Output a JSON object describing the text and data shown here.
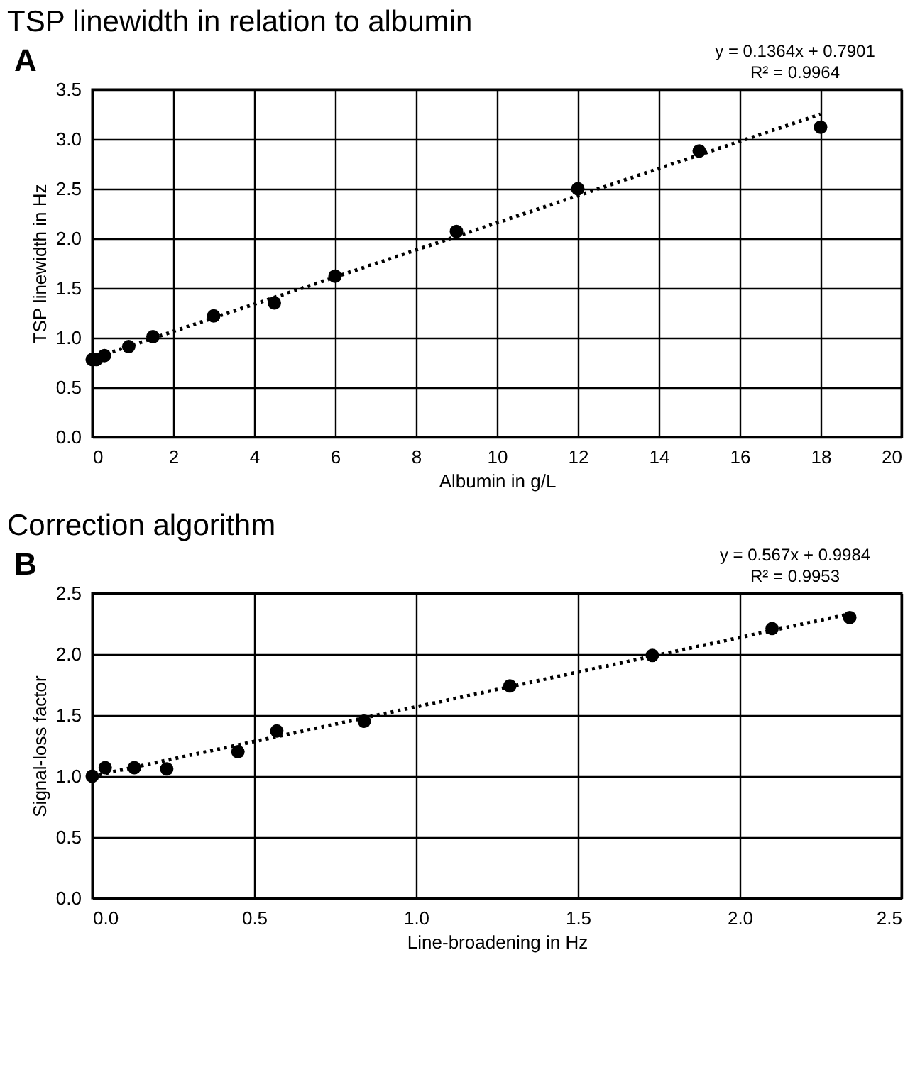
{
  "chart_data": [
    {
      "type": "scatter",
      "title": "TSP linewidth in relation to albumin",
      "xlabel": "Albumin in g/L",
      "ylabel": "TSP linewidth in Hz",
      "annotations": [
        "A",
        "y = 0.1364x + 0.7901",
        "R² = 0.9964"
      ],
      "series": [
        {
          "color": "#000000",
          "marker": "circle",
          "x": [
            0,
            0.1,
            0.3,
            0.9,
            1.5,
            3,
            4.5,
            6,
            9,
            12,
            15,
            18
          ],
          "values": [
            0.78,
            0.78,
            0.82,
            0.91,
            1.01,
            1.22,
            1.35,
            1.62,
            2.07,
            2.5,
            2.88,
            3.12
          ]
        },
        {
          "type": "line",
          "color": "#000000",
          "marker": "none",
          "line_style": "dotted",
          "x": [
            0,
            18
          ],
          "values": [
            0.79,
            3.25
          ]
        }
      ],
      "xlim": [
        0,
        20
      ],
      "xticks": [
        0,
        2,
        4,
        6,
        8,
        10,
        12,
        14,
        16,
        18,
        20
      ],
      "ylim": [
        0,
        3.5
      ],
      "yticks": [
        {
          "value": 0,
          "label": "0.0"
        },
        {
          "value": 0.5,
          "label": "0.5"
        },
        {
          "value": 1,
          "label": "1.0"
        },
        {
          "value": 1.5,
          "label": "1.5"
        },
        {
          "value": 2,
          "label": "2.0"
        },
        {
          "value": 2.5,
          "label": "2.5"
        },
        {
          "value": 3,
          "label": "3.0"
        },
        {
          "value": 3.5,
          "label": "3.5"
        }
      ],
      "grid": true,
      "legend": false
    },
    {
      "type": "scatter",
      "title": "Correction algorithm",
      "xlabel": "Line-broadening in Hz",
      "ylabel": "Signal-loss factor",
      "annotations": [
        "B",
        "y = 0.567x + 0.9984",
        "R² = 0.9953"
      ],
      "series": [
        {
          "color": "#000000",
          "marker": "circle",
          "x": [
            0,
            0.04,
            0.13,
            0.23,
            0.45,
            0.57,
            0.84,
            1.29,
            1.73,
            2.1,
            2.34
          ],
          "values": [
            1.0,
            1.07,
            1.07,
            1.06,
            1.2,
            1.37,
            1.45,
            1.74,
            1.99,
            2.21,
            2.3
          ]
        },
        {
          "type": "line",
          "color": "#000000",
          "marker": "none",
          "line_style": "dotted",
          "x": [
            0,
            2.34
          ],
          "values": [
            1.0,
            2.33
          ]
        }
      ],
      "xlim": [
        0,
        2.5
      ],
      "xticks": [
        {
          "value": 0,
          "label": "0.0"
        },
        {
          "value": 0.5,
          "label": "0.5"
        },
        {
          "value": 1,
          "label": "1.0"
        },
        {
          "value": 1.5,
          "label": "1.5"
        },
        {
          "value": 2,
          "label": "2.0"
        },
        {
          "value": 2.5,
          "label": "2.5"
        }
      ],
      "ylim": [
        0,
        2.5
      ],
      "yticks": [
        {
          "value": 0,
          "label": "0.0"
        },
        {
          "value": 0.5,
          "label": "0.5"
        },
        {
          "value": 1,
          "label": "1.0"
        },
        {
          "value": 1.5,
          "label": "1.5"
        },
        {
          "value": 2,
          "label": "2.0"
        },
        {
          "value": 2.5,
          "label": "2.5"
        }
      ],
      "grid": true,
      "legend": false
    }
  ]
}
